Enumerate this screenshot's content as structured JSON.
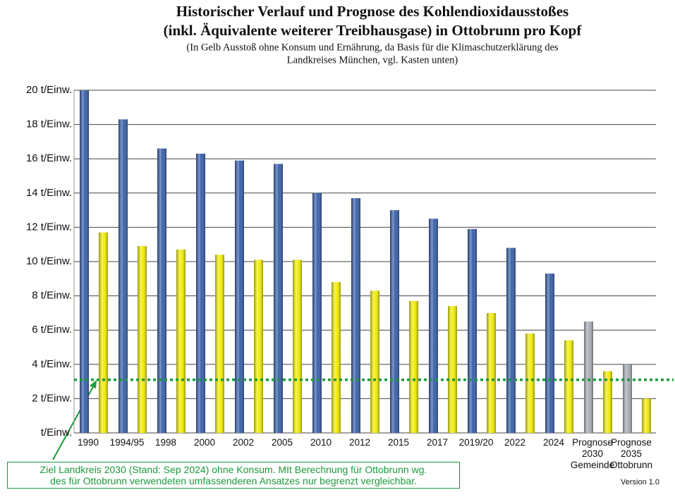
{
  "chart_data": {
    "type": "bar",
    "title": [
      "Historischer Verlauf und Prognose des Kohlendioxidausstoßes",
      "(inkl. Äquivalente weiterer Treibhausgase) in Ottobrunn pro Kopf"
    ],
    "subtitle": [
      "(In Gelb Ausstoß ohne Konsum und Ernährung, da Basis für die Klimaschutzerklärung des",
      "Landkreises München, vgl. Kasten unten)"
    ],
    "categories": [
      "1990",
      "1994/95",
      "1998",
      "2000",
      "2002",
      "2005",
      "2010",
      "2012",
      "2015",
      "2017",
      "2019/20",
      "2022",
      "2024",
      "Prognose\n2030\nGemeinde",
      "Prognose\n2035\nOttobrunn"
    ],
    "series": [
      {
        "color": "#3b62ad",
        "colors": [
          "#3b62ad",
          "#3b62ad",
          "#3b62ad",
          "#3b62ad",
          "#3b62ad",
          "#3b62ad",
          "#3b62ad",
          "#3b62ad",
          "#3b62ad",
          "#3b62ad",
          "#3b62ad",
          "#3b62ad",
          "#3b62ad",
          "#a9aeb8",
          "#a9aeb8"
        ],
        "values": [
          20.0,
          18.3,
          16.6,
          16.3,
          15.9,
          15.7,
          14.0,
          13.7,
          13.0,
          12.5,
          11.9,
          10.8,
          9.3,
          6.5,
          4.0
        ]
      },
      {
        "color": "#f2ee0a",
        "colors": [
          "#f2ee0a",
          "#f2ee0a",
          "#f2ee0a",
          "#f2ee0a",
          "#f2ee0a",
          "#f2ee0a",
          "#f2ee0a",
          "#f2ee0a",
          "#f2ee0a",
          "#f2ee0a",
          "#f2ee0a",
          "#f2ee0a",
          "#f2ee0a",
          "#f2ee0a",
          "#f2ee0a"
        ],
        "values": [
          11.7,
          10.9,
          10.7,
          10.4,
          10.1,
          10.1,
          8.8,
          8.3,
          7.7,
          7.4,
          7.0,
          5.8,
          5.4,
          3.6,
          2.0
        ]
      }
    ],
    "ylim": [
      0,
      20
    ],
    "yticks": [
      {
        "value": 0,
        "label": "t/Einw."
      },
      {
        "value": 2,
        "label": "2 t/Einw."
      },
      {
        "value": 4,
        "label": "4 t/Einw."
      },
      {
        "value": 6,
        "label": "6 t/Einw."
      },
      {
        "value": 8,
        "label": "8 t/Einw."
      },
      {
        "value": 10,
        "label": "10 t/Einw."
      },
      {
        "value": 12,
        "label": "12 t/Einw."
      },
      {
        "value": 14,
        "label": "14 t/Einw."
      },
      {
        "value": 16,
        "label": "16 t/Einw."
      },
      {
        "value": 18,
        "label": "18 t/Einw."
      },
      {
        "value": 20,
        "label": "20 t/Einw."
      }
    ],
    "grid": true,
    "target_line": {
      "value": 3.1,
      "color": "#1a9a3a"
    },
    "annotation": [
      "Ziel Landkreis 2030 (Stand: Sep 2024) ohne Konsum. MIt Berechnung für Ottobrunn wg.",
      "des für Ottobrunn verwendeten umfassenderen Ansatzes nur begrenzt vergleichbar."
    ],
    "version": "Version 1.0"
  }
}
